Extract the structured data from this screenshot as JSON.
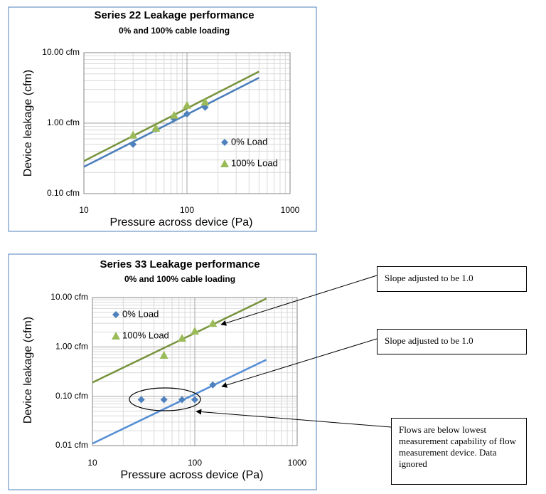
{
  "chart_data": [
    {
      "type": "scatter",
      "title": "Series 22 Leakage performance",
      "subtitle": "0% and 100% cable loading",
      "xlabel": "Pressure across device (Pa)",
      "ylabel": "Device leakage (cfm)",
      "xscale": "log",
      "yscale": "log",
      "grid": true,
      "minor_grid": true,
      "legend": "right",
      "xlim": [
        10,
        1000
      ],
      "xticks": [
        10,
        100,
        1000
      ],
      "ylim": [
        0.1,
        10
      ],
      "yticks": [
        {
          "value": 0.1,
          "label": "0.10 cfm"
        },
        {
          "value": 1,
          "label": "1.00 cfm"
        },
        {
          "value": 10,
          "label": "10.00 cfm"
        }
      ],
      "series": [
        {
          "name": "0% Load",
          "color": "#4f81bd",
          "marker": "diamond",
          "x": [
            30,
            50,
            75,
            100,
            150
          ],
          "values": [
            0.5,
            0.82,
            1.15,
            1.35,
            1.68
          ]
        },
        {
          "name": "100% Load",
          "color": "#9bbb59",
          "marker": "triangle",
          "x": [
            30,
            50,
            75,
            100,
            150
          ],
          "values": [
            0.68,
            0.85,
            1.3,
            1.8,
            2.0
          ]
        }
      ],
      "trendlines": [
        {
          "color": "#4a7ebb",
          "x": [
            10,
            500
          ],
          "values": [
            0.24,
            4.4
          ]
        },
        {
          "color": "#77933c",
          "x": [
            10,
            500
          ],
          "values": [
            0.29,
            5.4
          ]
        }
      ]
    },
    {
      "type": "scatter",
      "title": "Series 33 Leakage performance",
      "subtitle": "0% and 100% cable loading",
      "xlabel": "Pressure across device (Pa)",
      "ylabel": "Device leakage (cfm)",
      "xscale": "log",
      "yscale": "log",
      "grid": true,
      "minor_grid": true,
      "legend": "upper left",
      "xlim": [
        10,
        1000
      ],
      "xticks": [
        10,
        100,
        1000
      ],
      "ylim": [
        0.01,
        10
      ],
      "yticks": [
        {
          "value": 0.01,
          "label": "0.01 cfm"
        },
        {
          "value": 0.1,
          "label": "0.10 cfm"
        },
        {
          "value": 1,
          "label": "1.00 cfm"
        },
        {
          "value": 10,
          "label": "10.00 cfm"
        }
      ],
      "series": [
        {
          "name": "0% Load",
          "color": "#4f81bd",
          "marker": "diamond",
          "x": [
            30,
            50,
            75,
            100,
            150
          ],
          "values": [
            0.085,
            0.085,
            0.085,
            0.085,
            0.17
          ]
        },
        {
          "name": "100% Load",
          "color": "#9bbb59",
          "marker": "triangle",
          "x": [
            50,
            75,
            100,
            150
          ],
          "values": [
            0.68,
            1.5,
            2.1,
            3.0
          ]
        }
      ],
      "trendlines": [
        {
          "color": "#558ed5",
          "x": [
            10,
            500
          ],
          "values": [
            0.011,
            0.55
          ]
        },
        {
          "color": "#77933c",
          "x": [
            10,
            500
          ],
          "values": [
            0.19,
            9.5
          ]
        }
      ],
      "annotations": [
        "Slope adjusted to be 1.0",
        "Slope adjusted to be 1.0",
        "Flows are below lowest measurement capability of flow measurement device.  Data ignored"
      ]
    }
  ]
}
